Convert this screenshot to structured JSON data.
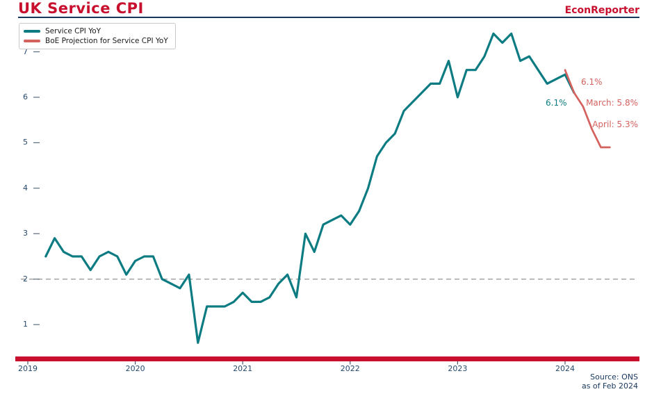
{
  "header": {
    "title": "UK Service CPI",
    "brand": "EconReporter"
  },
  "legend": [
    {
      "label": "Service CPI YoY",
      "color": "#0c7c82"
    },
    {
      "label": "BoE Projection for Service CPI YoY",
      "color": "#d4615e"
    }
  ],
  "annotations": {
    "actual_last": "6.1%",
    "projection_feb": "6.1%",
    "projection_march": "March: 5.8%",
    "projection_april": "April: 5.3%"
  },
  "footer": {
    "source": "Source: ONS",
    "as_of": "as of Feb 2024"
  },
  "colors": {
    "accent_red": "#c8102e",
    "navy": "#16365c",
    "teal": "#0c7c82",
    "salmon": "#d4615e",
    "reference_gray": "#9e9e9e"
  },
  "chart_data": {
    "type": "line",
    "title": "UK Service CPI",
    "xlabel": "",
    "ylabel": "",
    "x_axis": {
      "tick_labels": [
        "2019",
        "2020",
        "2021",
        "2022",
        "2023",
        "2024"
      ],
      "frequency": "monthly"
    },
    "y_axis": {
      "ticks": [
        1,
        2,
        3,
        4,
        5,
        6,
        7
      ],
      "range": [
        0.4,
        7.6
      ]
    },
    "reference_line": {
      "value": 2,
      "style": "dashed",
      "color": "#9e9e9e"
    },
    "legend_position": "upper left",
    "grid": false,
    "series": [
      {
        "name": "Service CPI YoY",
        "color": "#0c7c82",
        "start": "2019-03",
        "end": "2024-02",
        "start_offset_months": 2,
        "values": [
          2.5,
          2.9,
          2.6,
          2.5,
          2.5,
          2.2,
          2.5,
          2.6,
          2.5,
          2.1,
          2.4,
          2.5,
          2.5,
          2.0,
          1.9,
          1.8,
          2.1,
          0.6,
          1.4,
          1.4,
          1.4,
          1.5,
          1.7,
          1.5,
          1.5,
          1.6,
          1.9,
          2.1,
          1.6,
          3.0,
          2.6,
          3.2,
          3.3,
          3.4,
          3.2,
          3.5,
          4.0,
          4.7,
          5.0,
          5.2,
          5.7,
          5.9,
          6.1,
          6.3,
          6.3,
          6.8,
          6.0,
          6.6,
          6.6,
          6.9,
          7.4,
          7.2,
          7.4,
          6.8,
          6.9,
          6.6,
          6.3,
          6.4,
          6.5,
          6.1
        ]
      },
      {
        "name": "BoE Projection for Service CPI YoY",
        "color": "#d4615e",
        "start": "2024-01",
        "end": "2024-06",
        "start_offset_months": 60,
        "values": [
          6.6,
          6.1,
          5.8,
          5.3,
          4.9,
          4.9
        ]
      }
    ]
  }
}
